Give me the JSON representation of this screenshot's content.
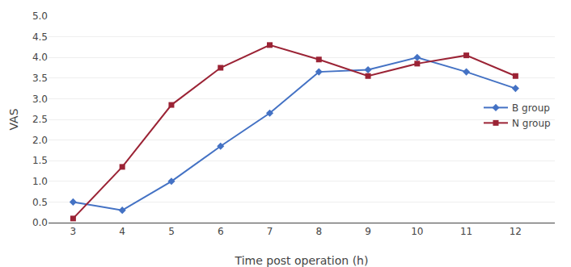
{
  "chart_data": {
    "type": "line",
    "xlabel": "Time post operation (h)",
    "ylabel": "VAS",
    "x": [
      3,
      4,
      5,
      6,
      7,
      8,
      9,
      10,
      11,
      12
    ],
    "series": [
      {
        "name": "B group",
        "color": "#4472C4",
        "marker": "diamond",
        "values": [
          0.5,
          0.3,
          1.0,
          1.85,
          2.65,
          3.65,
          3.7,
          4.0,
          3.65,
          3.25
        ]
      },
      {
        "name": "N group",
        "color": "#9B2335",
        "marker": "square",
        "values": [
          0.1,
          1.35,
          2.85,
          3.75,
          4.3,
          3.95,
          3.55,
          3.85,
          4.05,
          3.55
        ]
      }
    ],
    "xlim": [
      2.5,
      12.8
    ],
    "xticks": [
      3,
      4,
      5,
      6,
      7,
      8,
      9,
      10,
      11,
      12
    ],
    "ylim": [
      0,
      5.0
    ],
    "yticks": [
      {
        "value": 0,
        "label": "0.0"
      },
      0.5,
      {
        "value": 1.0,
        "label": "1.0"
      },
      1.5,
      {
        "value": 2.0,
        "label": "2.0"
      },
      2.5,
      {
        "value": 3.0,
        "label": "3.0"
      },
      3.5,
      {
        "value": 4.0,
        "label": "4.0"
      },
      4.5,
      {
        "value": 5.0,
        "label": "5.0"
      }
    ],
    "grid": true,
    "legend": "right"
  }
}
